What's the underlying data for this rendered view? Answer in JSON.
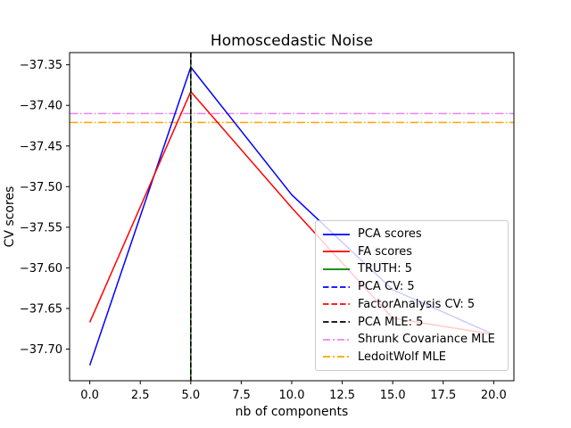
{
  "chart_data": {
    "type": "line",
    "title": "Homoscedastic Noise",
    "xlabel": "nb of components",
    "ylabel": "CV scores",
    "xlim": [
      -1,
      21
    ],
    "ylim": [
      -37.739,
      -37.335
    ],
    "grid": false,
    "xticks": [
      0.0,
      2.5,
      5.0,
      7.5,
      10.0,
      12.5,
      15.0,
      17.5,
      20.0
    ],
    "xtick_labels": [
      "0.0",
      "2.5",
      "5.0",
      "7.5",
      "10.0",
      "12.5",
      "15.0",
      "17.5",
      "20.0"
    ],
    "yticks": [
      -37.35,
      -37.4,
      -37.45,
      -37.5,
      -37.55,
      -37.6,
      -37.65,
      -37.7
    ],
    "ytick_labels": [
      "−37.35",
      "−37.40",
      "−37.45",
      "−37.50",
      "−37.55",
      "−37.60",
      "−37.65",
      "−37.70"
    ],
    "x": [
      0,
      5,
      10,
      15,
      20
    ],
    "series": [
      {
        "name": "PCA scores",
        "color": "#0000ff",
        "style": "solid",
        "y": [
          -37.72,
          -37.353,
          -37.51,
          -37.627,
          -37.682
        ]
      },
      {
        "name": "FA scores",
        "color": "#ff0000",
        "style": "solid",
        "y": [
          -37.667,
          -37.383,
          -37.526,
          -37.662,
          -37.682
        ]
      }
    ],
    "vlines": [
      {
        "name": "TRUTH: 5",
        "x": 5,
        "color": "#008000",
        "style": "solid"
      },
      {
        "name": "PCA CV: 5",
        "x": 5,
        "color": "#0000ff",
        "style": "dashed"
      },
      {
        "name": "FactorAnalysis CV: 5",
        "x": 5,
        "color": "#ff0000",
        "style": "dashed"
      },
      {
        "name": "PCA MLE: 5",
        "x": 5,
        "color": "#000000",
        "style": "dashed"
      }
    ],
    "hlines": [
      {
        "name": "Shrunk Covariance MLE",
        "y": -37.41,
        "color": "#ee82ee",
        "style": "dashdot"
      },
      {
        "name": "LedoitWolf MLE",
        "y": -37.421,
        "color": "#ffa500",
        "style": "dashdot"
      }
    ],
    "legend": {
      "position": "lower right",
      "entries": [
        {
          "label": "PCA scores",
          "color": "#0000ff",
          "style": "solid"
        },
        {
          "label": "FA scores",
          "color": "#ff0000",
          "style": "solid"
        },
        {
          "label": "TRUTH: 5",
          "color": "#008000",
          "style": "solid"
        },
        {
          "label": "PCA CV: 5",
          "color": "#0000ff",
          "style": "dashed"
        },
        {
          "label": "FactorAnalysis CV: 5",
          "color": "#ff0000",
          "style": "dashed"
        },
        {
          "label": "PCA MLE: 5",
          "color": "#000000",
          "style": "dashed"
        },
        {
          "label": "Shrunk Covariance MLE",
          "color": "#ee82ee",
          "style": "dashdot"
        },
        {
          "label": "LedoitWolf MLE",
          "color": "#ffa500",
          "style": "dashdot"
        }
      ]
    }
  }
}
